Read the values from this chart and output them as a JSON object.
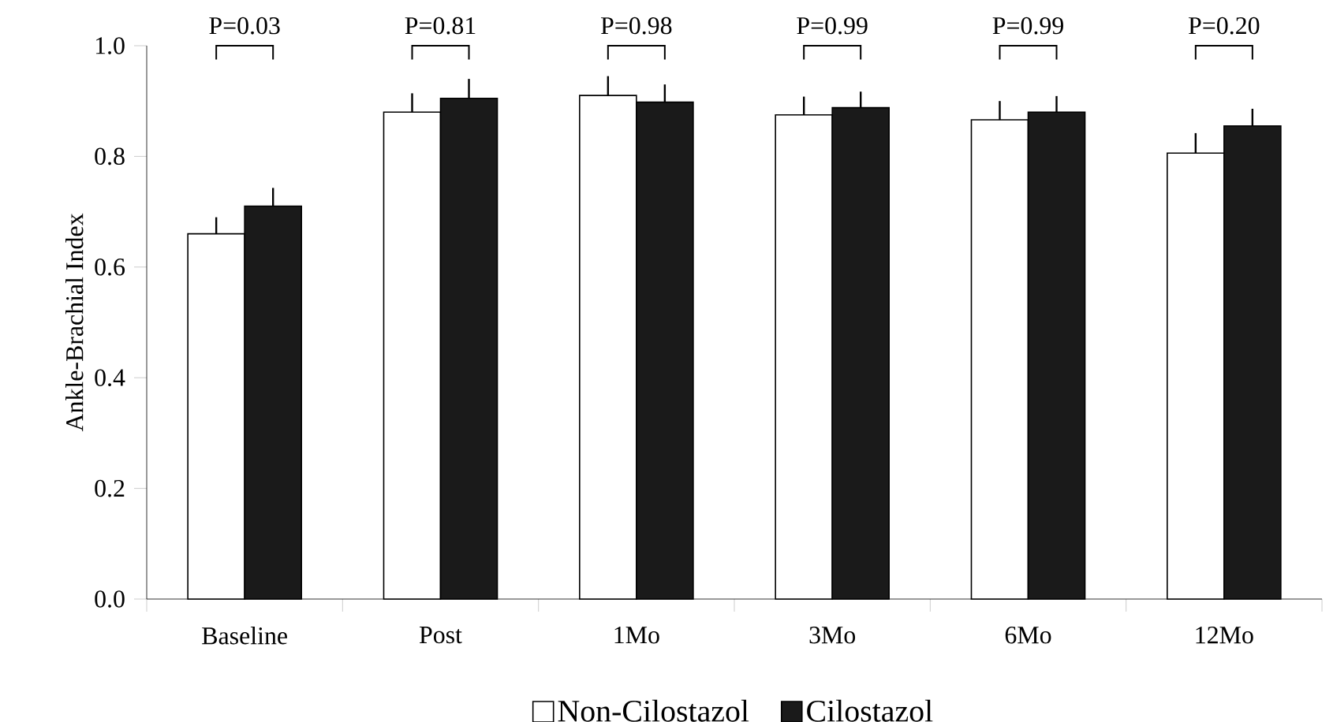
{
  "chart_data": {
    "type": "bar",
    "ylabel": "Ankle-Brachial Index",
    "categories": [
      "Baseline",
      "Post",
      "1Mo",
      "3Mo",
      "6Mo",
      "12Mo"
    ],
    "series": [
      {
        "name": "Non-Cilostazol",
        "color": "#ffffff",
        "values": [
          0.66,
          0.88,
          0.91,
          0.875,
          0.866,
          0.806
        ],
        "errors": [
          [
            0.66,
            0.69
          ],
          [
            0.88,
            0.914
          ],
          [
            0.91,
            0.945
          ],
          [
            0.875,
            0.908
          ],
          [
            0.866,
            0.9
          ],
          [
            0.806,
            0.842
          ]
        ]
      },
      {
        "name": "Cilostazol",
        "color": "#1a1a1a",
        "values": [
          0.71,
          0.905,
          0.898,
          0.888,
          0.88,
          0.855
        ],
        "errors": [
          [
            0.71,
            0.743
          ],
          [
            0.905,
            0.94
          ],
          [
            0.898,
            0.93
          ],
          [
            0.888,
            0.917
          ],
          [
            0.88,
            0.909
          ],
          [
            0.855,
            0.886
          ]
        ]
      }
    ],
    "ylim": [
      0,
      1.0
    ],
    "yticks": [
      {
        "value": 0,
        "label": "0.0"
      },
      {
        "value": 0.2,
        "label": "0.2"
      },
      {
        "value": 0.4,
        "label": "0.4"
      },
      {
        "value": 0.6,
        "label": "0.6"
      },
      {
        "value": 0.8,
        "label": "0.8"
      },
      {
        "value": 1.0,
        "label": "1.0"
      }
    ],
    "annotations": [
      "P=0.03",
      "P=0.81",
      "P=0.98",
      "P=0.99",
      "P=0.99",
      "P=0.20"
    ],
    "legend": "bottom",
    "grid": false
  }
}
